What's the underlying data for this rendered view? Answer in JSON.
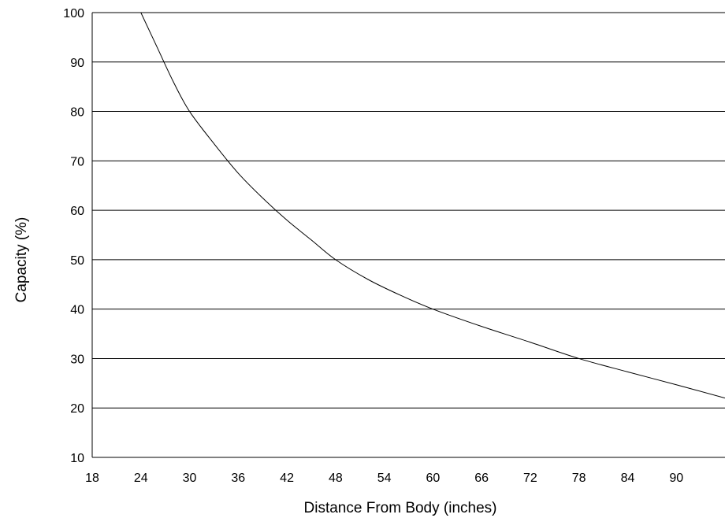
{
  "chart_data": {
    "type": "line",
    "title": "",
    "xlabel": "Distance From Body (inches)",
    "ylabel": "Capacity (%)",
    "xlim": [
      18,
      96
    ],
    "ylim": [
      10,
      100
    ],
    "x_ticks": [
      18,
      24,
      30,
      36,
      42,
      48,
      54,
      60,
      66,
      72,
      78,
      84,
      90
    ],
    "y_ticks": [
      10,
      20,
      30,
      40,
      50,
      60,
      70,
      80,
      90,
      100
    ],
    "grid": "horizontal",
    "legend": "none",
    "line_color": "#000000",
    "grid_color": "#000000",
    "series": [
      {
        "x": [
          24,
          26,
          28,
          30,
          33,
          36,
          39,
          42,
          45,
          48,
          52,
          56,
          60,
          66,
          72,
          78,
          84,
          90,
          96
        ],
        "values": [
          100,
          93,
          86,
          80,
          73.5,
          67.5,
          62.5,
          58,
          54,
          50,
          46,
          42.8,
          40,
          36.5,
          33.3,
          30,
          27.3,
          24.7,
          22
        ]
      }
    ]
  }
}
